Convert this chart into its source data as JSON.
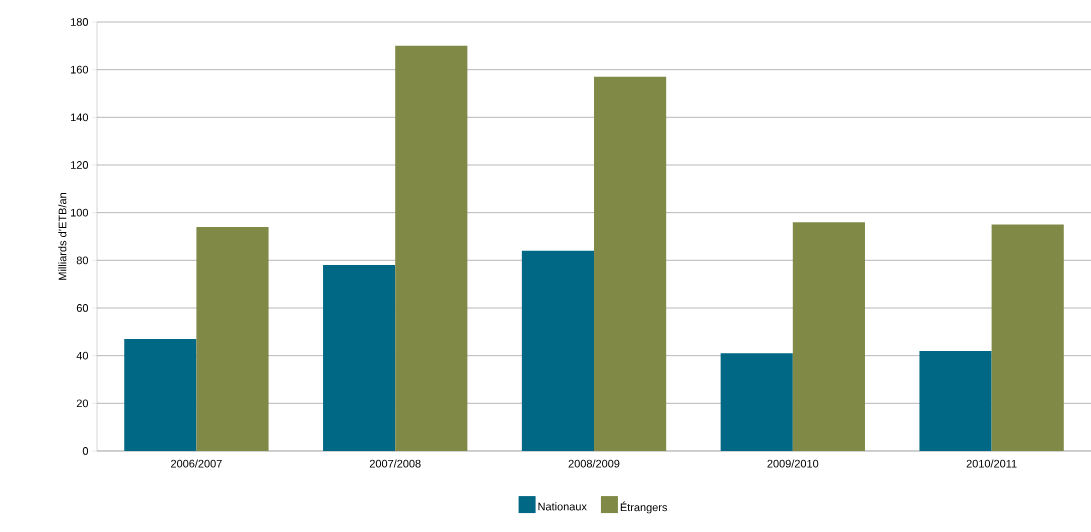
{
  "chart_data": {
    "type": "bar",
    "ylabel": "Milliards d’ETB/an",
    "categories": [
      "2006/2007",
      "2007/2008",
      "2008/2009",
      "2009/2010",
      "2010/2011"
    ],
    "series": [
      {
        "name": "Nationaux",
        "color": "#006784",
        "values": [
          47,
          78,
          84,
          41,
          42
        ]
      },
      {
        "name": "Étrangers",
        "color": "#808946",
        "values": [
          94,
          170,
          157,
          96,
          95
        ]
      }
    ],
    "ylim": [
      0,
      180
    ],
    "yticks": [
      0,
      20,
      40,
      60,
      80,
      100,
      120,
      140,
      160,
      180
    ],
    "grid": "y",
    "legend": "bottom"
  }
}
